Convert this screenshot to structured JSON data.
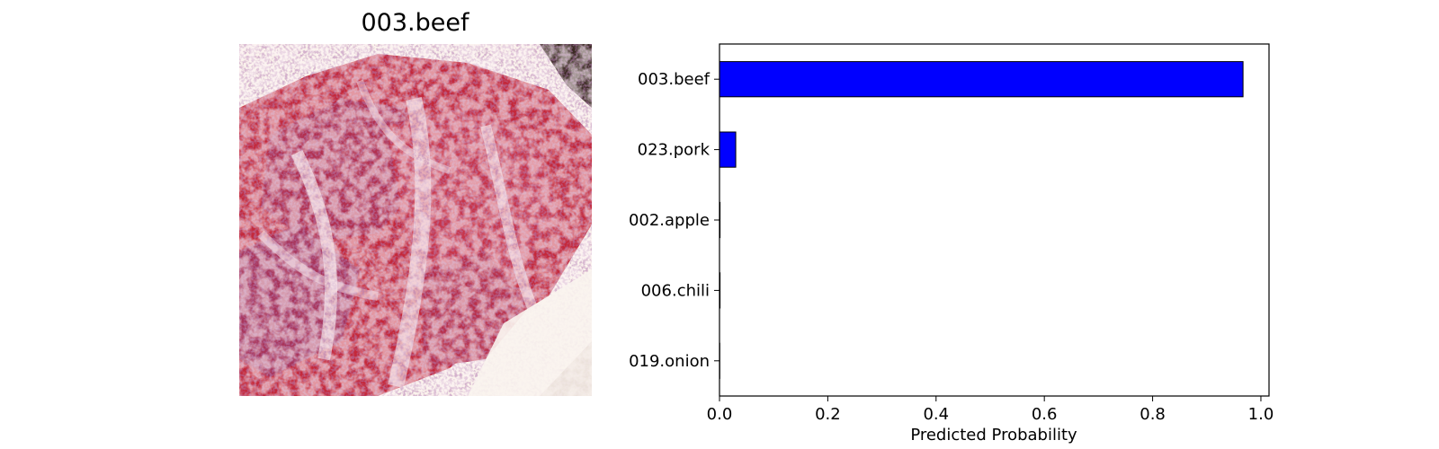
{
  "image_panel": {
    "title": "003.beef",
    "photo_subject": "raw marbled beef slices on a white plate"
  },
  "colors": {
    "bar_fill": "#0000ff",
    "bar_edge": "#000000",
    "meat_red": "#c4283a",
    "fat_white": "#f3dde0",
    "plate": "#fbf5ef"
  },
  "chart_data": {
    "type": "bar",
    "orientation": "horizontal",
    "categories": [
      "003.beef",
      "023.pork",
      "002.apple",
      "006.chili",
      "019.onion"
    ],
    "values": [
      0.967,
      0.03,
      0.001,
      0.001,
      0.0005
    ],
    "xlabel": "Predicted Probability",
    "ylabel": "",
    "xlim": [
      0,
      1.015
    ],
    "xticks": [
      0.0,
      0.2,
      0.4,
      0.6,
      0.8,
      1.0
    ],
    "xtick_labels": [
      "0.0",
      "0.2",
      "0.4",
      "0.6",
      "0.8",
      "1.0"
    ],
    "grid": false,
    "legend": "none"
  }
}
